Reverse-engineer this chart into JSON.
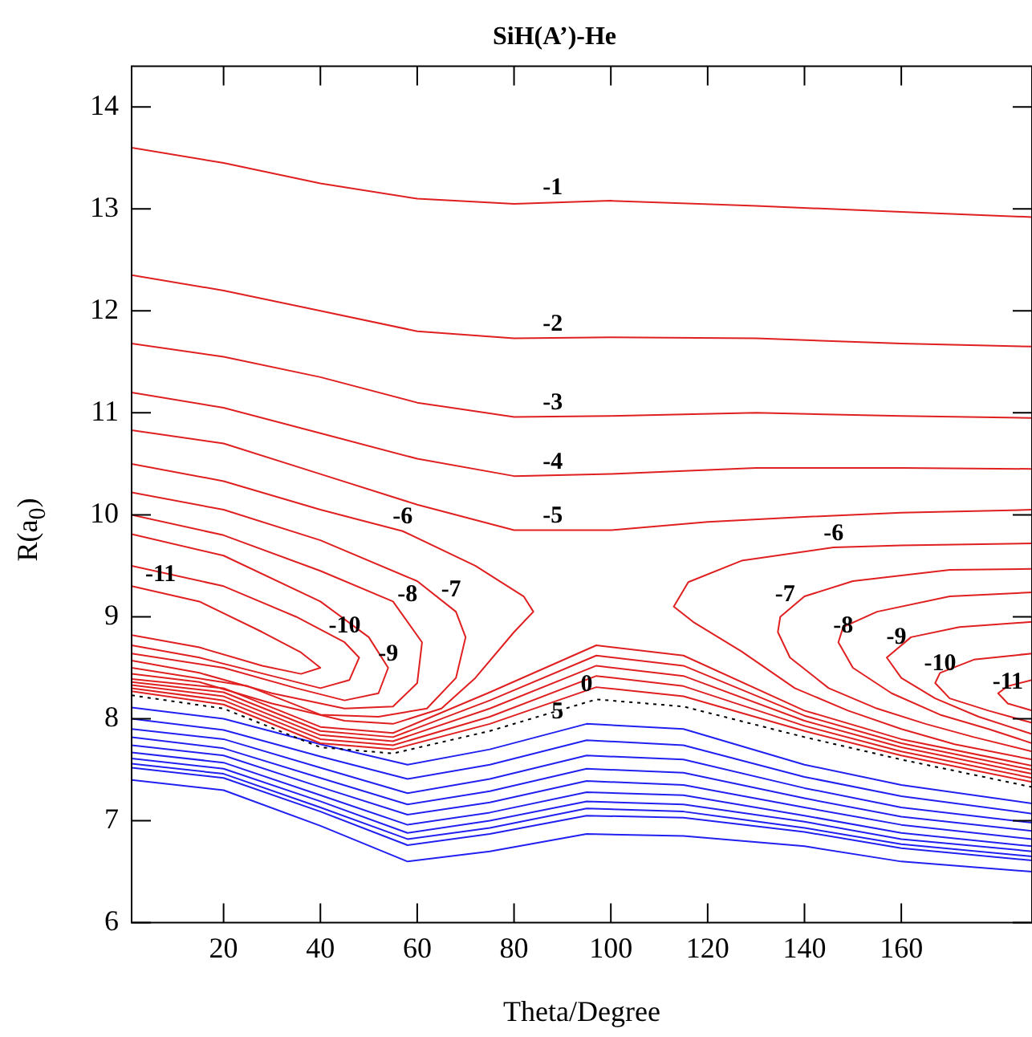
{
  "chart_data": {
    "type": "line",
    "title": "SiH(A’)-He",
    "xlabel": "Theta/Degree",
    "ylabel": "R(a$_{0}$)",
    "xlim": [
      1,
      187
    ],
    "ylim": [
      6,
      14.4
    ],
    "xticks": [
      20,
      40,
      60,
      80,
      100,
      120,
      140,
      160
    ],
    "yticks": [
      6,
      7,
      8,
      9,
      10,
      11,
      12,
      13,
      14
    ],
    "series": [
      {
        "color": "#e02020",
        "x": [
          1,
          20,
          40,
          60,
          80,
          100,
          130,
          160,
          187
        ],
        "values": [
          13.6,
          13.45,
          13.25,
          13.1,
          13.05,
          13.08,
          13.03,
          12.97,
          12.92
        ]
      },
      {
        "color": "#e02020",
        "x": [
          1,
          20,
          40,
          60,
          80,
          100,
          130,
          160,
          187
        ],
        "values": [
          12.35,
          12.2,
          12.0,
          11.8,
          11.73,
          11.74,
          11.73,
          11.68,
          11.65
        ]
      },
      {
        "color": "#e02020",
        "x": [
          1,
          20,
          40,
          60,
          80,
          100,
          130,
          160,
          187
        ],
        "values": [
          11.68,
          11.55,
          11.35,
          11.1,
          10.96,
          10.97,
          11.0,
          10.97,
          10.95
        ]
      },
      {
        "color": "#e02020",
        "x": [
          1,
          20,
          40,
          60,
          80,
          100,
          130,
          160,
          187
        ],
        "values": [
          11.2,
          11.05,
          10.8,
          10.55,
          10.38,
          10.4,
          10.46,
          10.46,
          10.45
        ]
      },
      {
        "color": "#e02020",
        "x": [
          1,
          20,
          40,
          60,
          80,
          100,
          120,
          140,
          160,
          187
        ],
        "values": [
          10.83,
          10.7,
          10.4,
          10.1,
          9.85,
          9.85,
          9.93,
          9.98,
          10.02,
          10.05
        ]
      },
      {
        "color": "#e02020",
        "x": [
          1,
          20,
          40,
          57,
          72,
          82,
          84,
          80,
          72,
          65,
          55,
          45,
          30,
          15,
          1
        ],
        "values": [
          10.5,
          10.33,
          10.05,
          9.84,
          9.5,
          9.2,
          9.05,
          8.85,
          8.4,
          8.1,
          7.95,
          7.98,
          8.15,
          8.36,
          8.44
        ]
      },
      {
        "color": "#e02020",
        "x": [
          1,
          20,
          40,
          60,
          68,
          70,
          68,
          62,
          52,
          40,
          25,
          1
        ],
        "values": [
          10.22,
          10.05,
          9.75,
          9.35,
          9.05,
          8.8,
          8.4,
          8.1,
          8.02,
          8.04,
          8.32,
          8.5
        ]
      },
      {
        "color": "#e02020",
        "x": [
          1,
          20,
          40,
          55,
          61,
          60,
          55,
          45,
          30,
          15,
          1
        ],
        "values": [
          10.0,
          9.8,
          9.45,
          9.15,
          8.75,
          8.35,
          8.12,
          8.1,
          8.25,
          8.45,
          8.57
        ]
      },
      {
        "color": "#e02020",
        "x": [
          1,
          20,
          40,
          50,
          54,
          52,
          45,
          35,
          20,
          1
        ],
        "values": [
          9.81,
          9.6,
          9.15,
          8.8,
          8.5,
          8.25,
          8.18,
          8.3,
          8.5,
          8.64
        ]
      },
      {
        "color": "#e02020",
        "x": [
          1,
          20,
          35,
          45,
          48,
          46,
          40,
          30,
          15,
          1
        ],
        "values": [
          9.5,
          9.3,
          9.0,
          8.75,
          8.6,
          8.38,
          8.3,
          8.42,
          8.6,
          8.72
        ]
      },
      {
        "color": "#e02020",
        "x": [
          1,
          15,
          28,
          36,
          40,
          36,
          28,
          15,
          1
        ],
        "values": [
          9.3,
          9.15,
          8.85,
          8.65,
          8.5,
          8.44,
          8.52,
          8.7,
          8.82
        ]
      },
      {
        "color": "#e02020",
        "x": [
          187,
          160,
          146,
          127,
          116,
          113,
          117,
          127,
          138,
          149,
          160,
          171,
          187
        ],
        "values": [
          9.72,
          9.7,
          9.68,
          9.55,
          9.34,
          9.1,
          8.95,
          8.66,
          8.3,
          8.08,
          7.9,
          7.75,
          7.6
        ]
      },
      {
        "color": "#e02020",
        "x": [
          187,
          170,
          150,
          140,
          135,
          134.5,
          137,
          145,
          155,
          165,
          175,
          187
        ],
        "values": [
          9.47,
          9.46,
          9.35,
          9.2,
          9.0,
          8.85,
          8.6,
          8.3,
          8.1,
          7.95,
          7.82,
          7.68
        ]
      },
      {
        "color": "#e02020",
        "x": [
          187,
          170,
          155,
          148,
          147,
          150,
          158,
          168,
          178,
          187
        ],
        "values": [
          9.24,
          9.2,
          9.05,
          8.9,
          8.75,
          8.5,
          8.25,
          8.04,
          7.9,
          7.76
        ]
      },
      {
        "color": "#e02020",
        "x": [
          187,
          172,
          162,
          157,
          160,
          167,
          176,
          187
        ],
        "values": [
          8.95,
          8.9,
          8.8,
          8.6,
          8.4,
          8.2,
          8.02,
          7.85
        ]
      },
      {
        "color": "#e02020",
        "x": [
          187,
          175,
          168,
          167,
          170,
          178,
          187
        ],
        "values": [
          8.64,
          8.58,
          8.45,
          8.35,
          8.2,
          8.08,
          7.96
        ]
      },
      {
        "color": "#e02020",
        "x": [
          187,
          182,
          180,
          182,
          187
        ],
        "values": [
          8.38,
          8.32,
          8.25,
          8.15,
          8.08
        ]
      },
      {
        "color": "#e02020",
        "x": [
          1,
          20,
          40,
          55,
          75,
          97,
          115,
          140,
          160,
          187
        ],
        "values": [
          8.39,
          8.3,
          7.92,
          7.86,
          8.26,
          8.72,
          8.62,
          8.08,
          7.8,
          7.54
        ]
      },
      {
        "color": "#e02020",
        "x": [
          1,
          20,
          40,
          55,
          75,
          97,
          115,
          140,
          160,
          187
        ],
        "values": [
          8.36,
          8.26,
          7.88,
          7.82,
          8.18,
          8.62,
          8.52,
          8.03,
          7.76,
          7.5
        ]
      },
      {
        "color": "#e02020",
        "x": [
          1,
          20,
          40,
          55,
          75,
          97,
          115,
          140,
          160,
          187
        ],
        "values": [
          8.33,
          8.22,
          7.84,
          7.78,
          8.1,
          8.52,
          8.42,
          7.98,
          7.72,
          7.46
        ]
      },
      {
        "color": "#e02020",
        "x": [
          1,
          20,
          40,
          55,
          75,
          97,
          115,
          140,
          160,
          187
        ],
        "values": [
          8.3,
          8.18,
          7.8,
          7.74,
          8.02,
          8.42,
          8.32,
          7.93,
          7.68,
          7.42
        ]
      },
      {
        "color": "#e02020",
        "x": [
          1,
          20,
          40,
          55,
          75,
          97,
          115,
          140,
          160,
          187
        ],
        "values": [
          8.27,
          8.14,
          7.76,
          7.7,
          7.95,
          8.31,
          8.22,
          7.88,
          7.64,
          7.38
        ]
      },
      {
        "color": "#000000",
        "line_style": "dotted",
        "x": [
          1,
          20,
          40,
          55,
          75,
          97,
          115,
          140,
          160,
          187
        ],
        "values": [
          8.23,
          8.1,
          7.72,
          7.66,
          7.88,
          8.19,
          8.12,
          7.82,
          7.6,
          7.33
        ]
      },
      {
        "color": "#2020f0",
        "x": [
          1,
          20,
          40,
          58,
          75,
          95,
          115,
          140,
          160,
          187
        ],
        "values": [
          8.11,
          8.0,
          7.75,
          7.55,
          7.7,
          7.95,
          7.9,
          7.55,
          7.35,
          7.17
        ]
      },
      {
        "color": "#2020f0",
        "x": [
          1,
          20,
          40,
          58,
          75,
          95,
          115,
          140,
          160,
          187
        ],
        "values": [
          8.0,
          7.89,
          7.63,
          7.41,
          7.55,
          7.79,
          7.74,
          7.43,
          7.24,
          7.07
        ]
      },
      {
        "color": "#2020f0",
        "x": [
          1,
          20,
          40,
          58,
          75,
          95,
          115,
          140,
          160,
          187
        ],
        "values": [
          7.9,
          7.8,
          7.52,
          7.27,
          7.41,
          7.64,
          7.6,
          7.32,
          7.13,
          6.98
        ]
      },
      {
        "color": "#2020f0",
        "x": [
          1,
          20,
          40,
          58,
          75,
          95,
          115,
          140,
          160,
          187
        ],
        "values": [
          7.82,
          7.71,
          7.42,
          7.16,
          7.29,
          7.51,
          7.47,
          7.22,
          7.04,
          6.9
        ]
      },
      {
        "color": "#2020f0",
        "x": [
          1,
          20,
          40,
          58,
          75,
          95,
          115,
          140,
          160,
          187
        ],
        "values": [
          7.74,
          7.64,
          7.33,
          7.06,
          7.18,
          7.39,
          7.35,
          7.13,
          6.96,
          6.82
        ]
      },
      {
        "color": "#2020f0",
        "x": [
          1,
          20,
          40,
          58,
          75,
          95,
          115,
          140,
          160,
          187
        ],
        "values": [
          7.67,
          7.57,
          7.25,
          6.96,
          7.08,
          7.28,
          7.25,
          7.05,
          6.88,
          6.75
        ]
      },
      {
        "color": "#2020f0",
        "x": [
          1,
          20,
          40,
          58,
          75,
          95,
          115,
          140,
          160,
          187
        ],
        "values": [
          7.61,
          7.51,
          7.19,
          6.88,
          7.0,
          7.19,
          7.16,
          6.99,
          6.82,
          6.7
        ]
      },
      {
        "color": "#2020f0",
        "x": [
          1,
          20,
          40,
          58,
          75,
          95,
          115,
          140,
          160,
          187
        ],
        "values": [
          7.56,
          7.46,
          7.13,
          6.82,
          6.93,
          7.12,
          7.09,
          6.93,
          6.77,
          6.65
        ]
      },
      {
        "color": "#2020f0",
        "x": [
          1,
          20,
          40,
          58,
          75,
          95,
          115,
          140,
          160,
          187
        ],
        "values": [
          7.52,
          7.42,
          7.09,
          6.76,
          6.87,
          7.05,
          7.03,
          6.89,
          6.73,
          6.61
        ]
      },
      {
        "color": "#2020f0",
        "x": [
          1,
          20,
          40,
          58,
          75,
          95,
          115,
          140,
          160,
          187
        ],
        "values": [
          7.4,
          7.3,
          6.95,
          6.6,
          6.7,
          6.87,
          6.85,
          6.75,
          6.6,
          6.5
        ]
      }
    ],
    "annotations": [
      {
        "text": "-1",
        "x": 88,
        "y": 13.07
      },
      {
        "text": "-2",
        "x": 88,
        "y": 11.73
      },
      {
        "text": "-3",
        "x": 88,
        "y": 10.96
      },
      {
        "text": "-4",
        "x": 88,
        "y": 10.38
      },
      {
        "text": "-5",
        "x": 88,
        "y": 9.85
      },
      {
        "text": "-6",
        "x": 57,
        "y": 9.84
      },
      {
        "text": "-7",
        "x": 67,
        "y": 9.13
      },
      {
        "text": "-8",
        "x": 58,
        "y": 9.08
      },
      {
        "text": "-9",
        "x": 54,
        "y": 8.5
      },
      {
        "text": "-10",
        "x": 45,
        "y": 8.77
      },
      {
        "text": "-11",
        "x": 7,
        "y": 9.28
      },
      {
        "text": "-6",
        "x": 146,
        "y": 9.68
      },
      {
        "text": "-7",
        "x": 136,
        "y": 9.08
      },
      {
        "text": "-8",
        "x": 148,
        "y": 8.77
      },
      {
        "text": "-9",
        "x": 159,
        "y": 8.66
      },
      {
        "text": "-10",
        "x": 168,
        "y": 8.4
      },
      {
        "text": "-11",
        "x": 182,
        "y": 8.22
      },
      {
        "text": "0",
        "x": 95,
        "y": 8.2
      },
      {
        "text": "5",
        "x": 89,
        "y": 7.93
      }
    ]
  }
}
